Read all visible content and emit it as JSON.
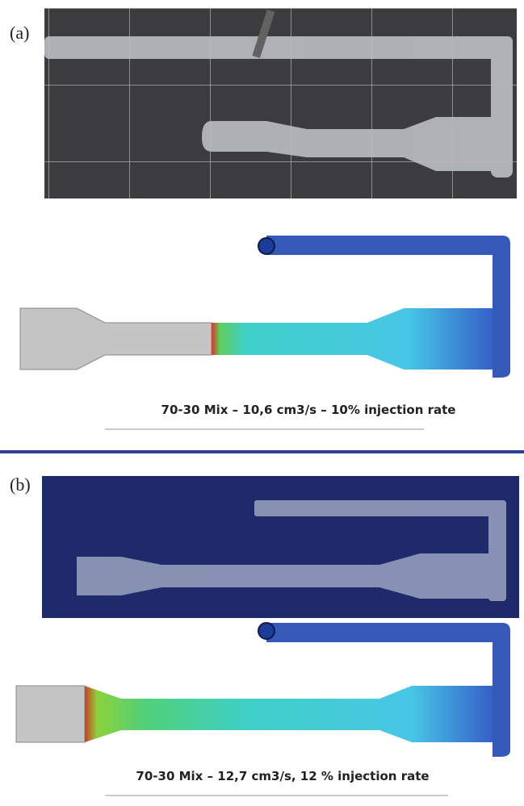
{
  "panels": [
    {
      "label": "(a)",
      "caption": "70-30 Mix – 10,6 cm3/s – 10% injection rate"
    },
    {
      "label": "(b)",
      "caption": "70-30 Mix – 12,7 cm3/s, 12 % injection rate"
    }
  ]
}
